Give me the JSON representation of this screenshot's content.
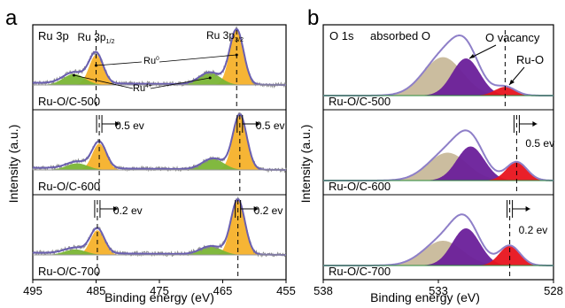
{
  "chart_data": [
    {
      "panel_label": "a",
      "type": "line",
      "title": "Ru 3p",
      "xlabel": "Binding energy (eV)",
      "ylabel": "Intensity (a.u.)",
      "xlim": [
        495,
        455
      ],
      "x_reversed": true,
      "x_ticks": [
        495,
        485,
        475,
        465,
        455
      ],
      "grid": false,
      "peak_labels": {
        "ru3p12": {
          "main": "Ru 3p",
          "sub": "1/2"
        },
        "ru3p32": {
          "main": "Ru 3p",
          "sub": "3/2"
        },
        "ru0": {
          "main": "Ru",
          "sup": "0"
        },
        "ru4": {
          "main": "Ru",
          "sup": "4+"
        }
      },
      "colors": {
        "ru0": "#f5b12a",
        "ru4": "#7ab535",
        "envelope": "#6a5fb0",
        "raw": "#888888"
      },
      "rows": [
        {
          "sample": "Ru-O/C-500",
          "peaks": [
            {
              "component": "Ru0 3p1/2",
              "center": 485.0,
              "rel_height": 0.55
            },
            {
              "component": "Ru4+ 3p1/2",
              "center": 488.5,
              "rel_height": 0.2
            },
            {
              "component": "Ru0 3p3/2",
              "center": 462.8,
              "rel_height": 1.0
            },
            {
              "component": "Ru4+ 3p3/2",
              "center": 467.0,
              "rel_height": 0.22
            }
          ]
        },
        {
          "sample": "Ru-O/C-600",
          "shift_label": "0.5 ev",
          "peaks": [
            {
              "component": "Ru0 3p1/2",
              "center": 484.5,
              "rel_height": 0.48
            },
            {
              "component": "Ru4+ 3p1/2",
              "center": 488.0,
              "rel_height": 0.12
            },
            {
              "component": "Ru0 3p3/2",
              "center": 462.3,
              "rel_height": 1.0
            },
            {
              "component": "Ru4+ 3p3/2",
              "center": 466.5,
              "rel_height": 0.2
            }
          ]
        },
        {
          "sample": "Ru-O/C-700",
          "shift_label": "0.2 ev",
          "peaks": [
            {
              "component": "Ru0 3p1/2",
              "center": 484.8,
              "rel_height": 0.45
            },
            {
              "component": "Ru4+ 3p1/2",
              "center": 488.3,
              "rel_height": 0.1
            },
            {
              "component": "Ru0 3p3/2",
              "center": 462.6,
              "rel_height": 1.0
            },
            {
              "component": "Ru4+ 3p3/2",
              "center": 466.8,
              "rel_height": 0.15
            }
          ]
        }
      ]
    },
    {
      "panel_label": "b",
      "type": "line",
      "title": "O 1s",
      "xlabel": "Binding energy (eV)",
      "ylabel": "Intensity (a.u.)",
      "xlim": [
        538,
        528
      ],
      "x_reversed": true,
      "x_ticks": [
        538,
        533,
        528
      ],
      "grid": false,
      "component_labels": [
        "absorbed O",
        "O vacancy",
        "Ru-O"
      ],
      "colors": {
        "absorbed O": "#c8b99a",
        "O vacancy": "#6a1f9a",
        "Ru-O": "#e8141e",
        "envelope": "#8e7fc8"
      },
      "rows": [
        {
          "sample": "Ru-O/C-500",
          "peaks": [
            {
              "component": "absorbed O",
              "center": 532.8,
              "rel_height": 0.62
            },
            {
              "component": "O vacancy",
              "center": 531.8,
              "rel_height": 0.6
            },
            {
              "component": "Ru-O",
              "center": 530.1,
              "rel_height": 0.14
            }
          ]
        },
        {
          "sample": "Ru-O/C-600",
          "shift_label": "0.5 ev",
          "peaks": [
            {
              "component": "absorbed O",
              "center": 532.6,
              "rel_height": 0.45
            },
            {
              "component": "O vacancy",
              "center": 531.6,
              "rel_height": 0.55
            },
            {
              "component": "Ru-O",
              "center": 529.6,
              "rel_height": 0.3
            }
          ]
        },
        {
          "sample": "Ru-O/C-700",
          "shift_label": "0.2 ev",
          "peaks": [
            {
              "component": "absorbed O",
              "center": 532.8,
              "rel_height": 0.4
            },
            {
              "component": "O vacancy",
              "center": 531.8,
              "rel_height": 0.6
            },
            {
              "component": "Ru-O",
              "center": 529.9,
              "rel_height": 0.32
            }
          ]
        }
      ]
    }
  ]
}
